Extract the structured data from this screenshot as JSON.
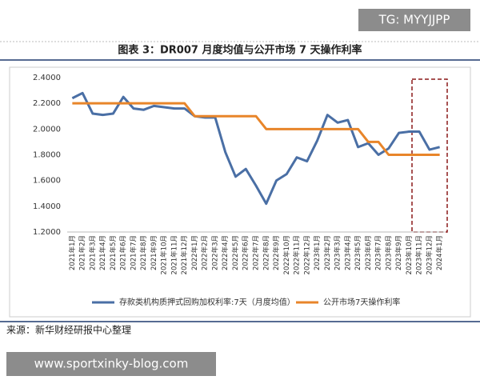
{
  "chart_data": {
    "type": "line",
    "title": "图表 3：DR007 月度均值与公开市场 7 天操作利率",
    "watermark_top": "TG: MYYJJPP",
    "watermark_bottom": "www.sportxinky-blog.com",
    "source": "来源：新华财经研报中心整理",
    "categories": [
      "2021年1月",
      "2021年2月",
      "2021年3月",
      "2021年4月",
      "2021年5月",
      "2021年6月",
      "2021年7月",
      "2021年8月",
      "2021年9月",
      "2021年10月",
      "2021年11月",
      "2021年12月",
      "2022年1月",
      "2022年2月",
      "2022年3月",
      "2022年4月",
      "2022年5月",
      "2022年6月",
      "2022年7月",
      "2022年8月",
      "2022年9月",
      "2022年10月",
      "2022年11月",
      "2022年12月",
      "2023年1月",
      "2023年2月",
      "2023年3月",
      "2023年4月",
      "2023年5月",
      "2023年6月",
      "2023年7月",
      "2023年8月",
      "2023年9月",
      "2023年10月",
      "2023年11月",
      "2023年12月",
      "2024年1月"
    ],
    "series": [
      {
        "name": "存款类机构质押式回购加权利率:7天（月度均值）",
        "color": "#4a6fa5",
        "values": [
          2.24,
          2.28,
          2.12,
          2.11,
          2.12,
          2.25,
          2.16,
          2.15,
          2.18,
          2.17,
          2.16,
          2.16,
          2.1,
          2.09,
          2.09,
          1.82,
          1.63,
          1.69,
          1.56,
          1.42,
          1.6,
          1.65,
          1.78,
          1.75,
          1.91,
          2.11,
          2.05,
          2.07,
          1.86,
          1.89,
          1.8,
          1.85,
          1.97,
          1.98,
          1.98,
          1.84,
          1.86
        ]
      },
      {
        "name": "公开市场7天操作利率",
        "color": "#e8852a",
        "values": [
          2.2,
          2.2,
          2.2,
          2.2,
          2.2,
          2.2,
          2.2,
          2.2,
          2.2,
          2.2,
          2.2,
          2.2,
          2.1,
          2.1,
          2.1,
          2.1,
          2.1,
          2.1,
          2.1,
          2.0,
          2.0,
          2.0,
          2.0,
          2.0,
          2.0,
          2.0,
          2.0,
          2.0,
          2.0,
          1.9,
          1.9,
          1.8,
          1.8,
          1.8,
          1.8,
          1.8,
          1.8
        ]
      }
    ],
    "ylim": [
      1.2,
      2.4
    ],
    "yticks": [
      {
        "value": 1.2,
        "label": "1.2000"
      },
      {
        "value": 1.4,
        "label": "1.4000"
      },
      {
        "value": 1.6,
        "label": "1.6000"
      },
      {
        "value": 1.8,
        "label": "1.8000"
      },
      {
        "value": 2.0,
        "label": "2.0000"
      },
      {
        "value": 2.2,
        "label": "2.2000"
      },
      {
        "value": 2.4,
        "label": "2.4000"
      }
    ],
    "grid": false,
    "legend": "bottom"
  }
}
